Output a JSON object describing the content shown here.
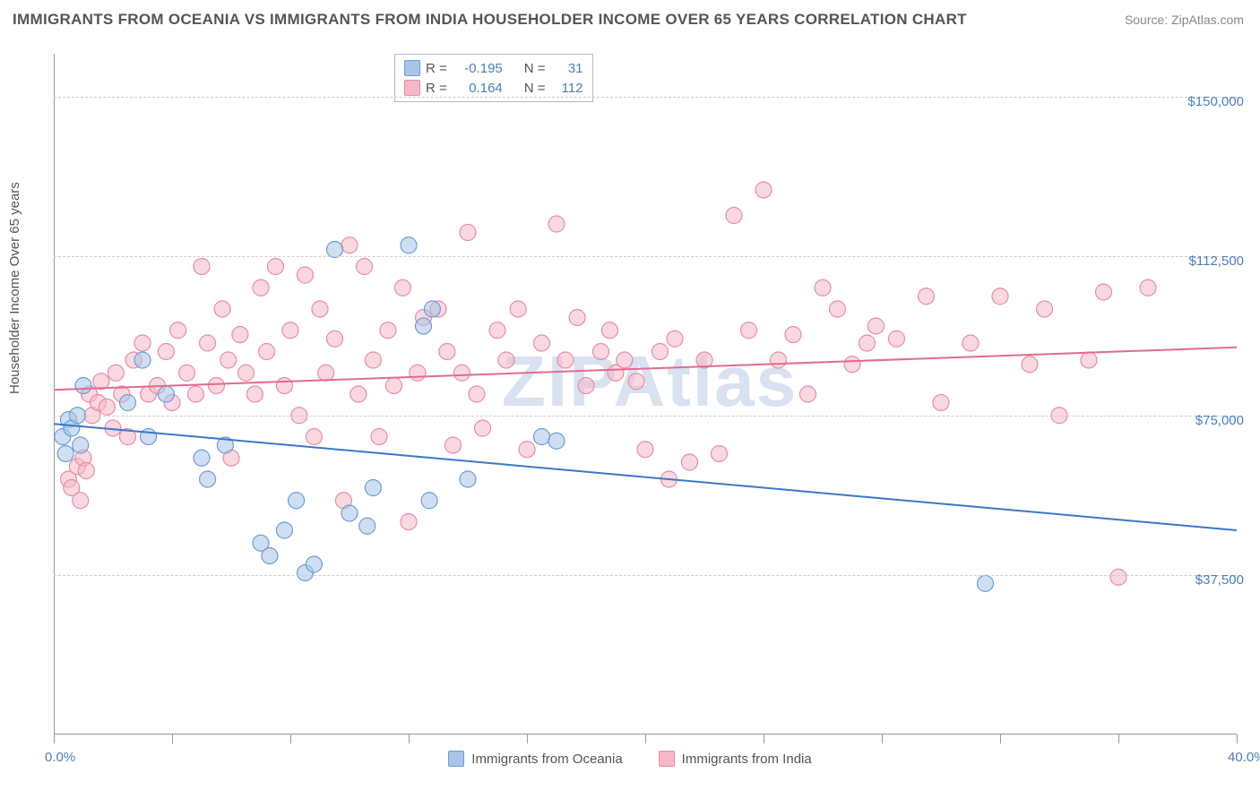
{
  "title": "IMMIGRANTS FROM OCEANIA VS IMMIGRANTS FROM INDIA HOUSEHOLDER INCOME OVER 65 YEARS CORRELATION CHART",
  "source": "Source: ZipAtlas.com",
  "watermark": "ZIPAtlas",
  "ylabel": "Householder Income Over 65 years",
  "chart": {
    "type": "scatter",
    "xlim": [
      0,
      40
    ],
    "ylim": [
      0,
      160000
    ],
    "xtick_labels": {
      "0": "0.0%",
      "40": "40.0%"
    },
    "xtick_positions": [
      0,
      4,
      8,
      12,
      16,
      20,
      24,
      28,
      32,
      36,
      40
    ],
    "ytick_positions": [
      37500,
      75000,
      112500,
      150000
    ],
    "ytick_labels": [
      "$37,500",
      "$75,000",
      "$112,500",
      "$150,000"
    ],
    "grid_color": "#cccccc",
    "background_color": "#ffffff",
    "axis_color": "#999999"
  },
  "series": [
    {
      "name": "Immigrants from Oceania",
      "color_fill": "#a8c5e8",
      "color_stroke": "#6a9dd8",
      "fill_opacity": 0.55,
      "marker_radius": 9,
      "R": "-0.195",
      "N": "31",
      "trend": {
        "y_at_x0": 73000,
        "y_at_x40": 48000,
        "color": "#3b78c4",
        "width": 2
      },
      "points": [
        [
          0.3,
          70000
        ],
        [
          0.5,
          74000
        ],
        [
          0.4,
          66000
        ],
        [
          0.6,
          72000
        ],
        [
          0.8,
          75000
        ],
        [
          0.9,
          68000
        ],
        [
          1.0,
          82000
        ],
        [
          3.0,
          88000
        ],
        [
          2.5,
          78000
        ],
        [
          3.8,
          80000
        ],
        [
          3.2,
          70000
        ],
        [
          5.0,
          65000
        ],
        [
          5.2,
          60000
        ],
        [
          5.8,
          68000
        ],
        [
          7.0,
          45000
        ],
        [
          7.3,
          42000
        ],
        [
          7.8,
          48000
        ],
        [
          8.2,
          55000
        ],
        [
          8.5,
          38000
        ],
        [
          8.8,
          40000
        ],
        [
          9.5,
          114000
        ],
        [
          10.0,
          52000
        ],
        [
          10.6,
          49000
        ],
        [
          10.8,
          58000
        ],
        [
          12.0,
          115000
        ],
        [
          12.5,
          96000
        ],
        [
          12.7,
          55000
        ],
        [
          12.8,
          100000
        ],
        [
          14.0,
          60000
        ],
        [
          16.5,
          70000
        ],
        [
          17.0,
          69000
        ],
        [
          31.5,
          35500
        ]
      ]
    },
    {
      "name": "Immigrants from India",
      "color_fill": "#f5b8c8",
      "color_stroke": "#e88ba5",
      "fill_opacity": 0.55,
      "marker_radius": 9,
      "R": "0.164",
      "N": "112",
      "trend": {
        "y_at_x0": 81000,
        "y_at_x40": 91000,
        "color": "#e26b8f",
        "width": 2
      },
      "points": [
        [
          0.5,
          60000
        ],
        [
          0.6,
          58000
        ],
        [
          0.8,
          63000
        ],
        [
          0.9,
          55000
        ],
        [
          1.0,
          65000
        ],
        [
          1.1,
          62000
        ],
        [
          1.2,
          80000
        ],
        [
          1.3,
          75000
        ],
        [
          1.5,
          78000
        ],
        [
          1.6,
          83000
        ],
        [
          1.8,
          77000
        ],
        [
          2.0,
          72000
        ],
        [
          2.1,
          85000
        ],
        [
          2.3,
          80000
        ],
        [
          2.5,
          70000
        ],
        [
          2.7,
          88000
        ],
        [
          3.0,
          92000
        ],
        [
          3.2,
          80000
        ],
        [
          3.5,
          82000
        ],
        [
          3.8,
          90000
        ],
        [
          4.0,
          78000
        ],
        [
          4.2,
          95000
        ],
        [
          4.5,
          85000
        ],
        [
          4.8,
          80000
        ],
        [
          5.0,
          110000
        ],
        [
          5.2,
          92000
        ],
        [
          5.5,
          82000
        ],
        [
          5.7,
          100000
        ],
        [
          5.9,
          88000
        ],
        [
          6.0,
          65000
        ],
        [
          6.3,
          94000
        ],
        [
          6.5,
          85000
        ],
        [
          6.8,
          80000
        ],
        [
          7.0,
          105000
        ],
        [
          7.2,
          90000
        ],
        [
          7.5,
          110000
        ],
        [
          7.8,
          82000
        ],
        [
          8.0,
          95000
        ],
        [
          8.3,
          75000
        ],
        [
          8.5,
          108000
        ],
        [
          8.8,
          70000
        ],
        [
          9.0,
          100000
        ],
        [
          9.2,
          85000
        ],
        [
          9.5,
          93000
        ],
        [
          9.8,
          55000
        ],
        [
          10.0,
          115000
        ],
        [
          10.3,
          80000
        ],
        [
          10.5,
          110000
        ],
        [
          10.8,
          88000
        ],
        [
          11.0,
          70000
        ],
        [
          11.3,
          95000
        ],
        [
          11.5,
          82000
        ],
        [
          11.8,
          105000
        ],
        [
          12.0,
          50000
        ],
        [
          12.3,
          85000
        ],
        [
          12.5,
          98000
        ],
        [
          13.0,
          100000
        ],
        [
          13.3,
          90000
        ],
        [
          13.5,
          68000
        ],
        [
          13.8,
          85000
        ],
        [
          14.0,
          118000
        ],
        [
          14.3,
          80000
        ],
        [
          14.5,
          72000
        ],
        [
          15.0,
          95000
        ],
        [
          15.3,
          88000
        ],
        [
          15.7,
          100000
        ],
        [
          16.0,
          67000
        ],
        [
          16.5,
          92000
        ],
        [
          17.0,
          120000
        ],
        [
          17.3,
          88000
        ],
        [
          17.7,
          98000
        ],
        [
          18.0,
          82000
        ],
        [
          18.5,
          90000
        ],
        [
          18.8,
          95000
        ],
        [
          19.0,
          85000
        ],
        [
          19.3,
          88000
        ],
        [
          19.7,
          83000
        ],
        [
          20.0,
          67000
        ],
        [
          20.5,
          90000
        ],
        [
          20.8,
          60000
        ],
        [
          21.0,
          93000
        ],
        [
          21.5,
          64000
        ],
        [
          22.0,
          88000
        ],
        [
          22.5,
          66000
        ],
        [
          23.0,
          122000
        ],
        [
          23.5,
          95000
        ],
        [
          24.0,
          128000
        ],
        [
          24.5,
          88000
        ],
        [
          25.0,
          94000
        ],
        [
          25.5,
          80000
        ],
        [
          26.0,
          105000
        ],
        [
          26.5,
          100000
        ],
        [
          27.0,
          87000
        ],
        [
          27.5,
          92000
        ],
        [
          27.8,
          96000
        ],
        [
          28.5,
          93000
        ],
        [
          29.5,
          103000
        ],
        [
          30.0,
          78000
        ],
        [
          31.0,
          92000
        ],
        [
          32.0,
          103000
        ],
        [
          33.0,
          87000
        ],
        [
          33.5,
          100000
        ],
        [
          34.0,
          75000
        ],
        [
          35.0,
          88000
        ],
        [
          35.5,
          104000
        ],
        [
          36.0,
          37000
        ],
        [
          37.0,
          105000
        ]
      ]
    }
  ],
  "legend_labels": {
    "R": "R =",
    "N": "N ="
  },
  "bottom_legend": [
    {
      "label": "Immigrants from Oceania",
      "fill": "#a8c5e8",
      "stroke": "#6a9dd8"
    },
    {
      "label": "Immigrants from India",
      "fill": "#f5b8c8",
      "stroke": "#e88ba5"
    }
  ]
}
